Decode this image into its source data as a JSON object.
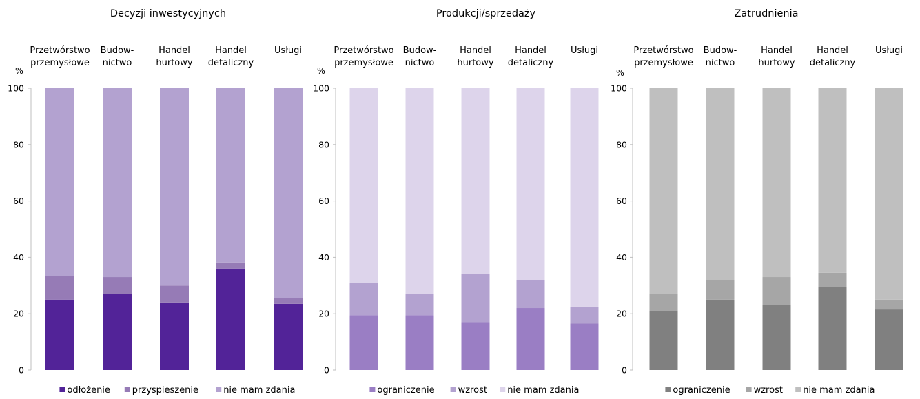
{
  "chart_data": [
    {
      "type": "bar",
      "stacked": true,
      "title": "Decyzji inwestycyjnych",
      "categories": [
        [
          "Przetwórstwo",
          "przemysłowe"
        ],
        [
          "Budow-",
          "nictwo"
        ],
        [
          "Handel",
          "hurtowy"
        ],
        [
          "Handel",
          "detaliczny"
        ],
        [
          "Usługi"
        ]
      ],
      "ylabel": "%",
      "ylim": [
        0,
        100
      ],
      "yticks": [
        "0",
        "20",
        "40",
        "60",
        "80",
        "100"
      ],
      "legend_position": "bottom",
      "series": [
        {
          "name": "odłożenie",
          "color": "#522398",
          "values": [
            25,
            27,
            24,
            36,
            23.5
          ]
        },
        {
          "name": "przyspieszenie",
          "color": "#967bb6",
          "values": [
            8.3,
            6,
            6,
            2.2,
            2
          ]
        },
        {
          "name": "nie mam zdania",
          "color": "#b3a2d0",
          "values": [
            66.7,
            67,
            70,
            61.8,
            74.5
          ]
        }
      ]
    },
    {
      "type": "bar",
      "stacked": true,
      "title": "Produkcji/sprzedaży",
      "categories": [
        [
          "Przetwórstwo",
          "przemysłowe"
        ],
        [
          "Budow-",
          "nictwo"
        ],
        [
          "Handel",
          "hurtowy"
        ],
        [
          "Handel",
          "detaliczny"
        ],
        [
          "Usługi"
        ]
      ],
      "ylabel": "%",
      "ylim": [
        0,
        100
      ],
      "yticks": [
        "0",
        "20",
        "40",
        "60",
        "80",
        "100"
      ],
      "legend_position": "bottom",
      "series": [
        {
          "name": "ograniczenie",
          "color": "#9a7ec4",
          "values": [
            19.5,
            19.5,
            17,
            22,
            16.5
          ]
        },
        {
          "name": "wzrost",
          "color": "#b3a2d0",
          "values": [
            11.5,
            7.5,
            17,
            10,
            6
          ]
        },
        {
          "name": "nie mam zdania",
          "color": "#ddd4eb",
          "values": [
            69,
            73,
            66,
            68,
            77.5
          ]
        }
      ]
    },
    {
      "type": "bar",
      "stacked": true,
      "title": "Zatrudnienia",
      "categories": [
        [
          "Przetwórstwo",
          "przemysłowe"
        ],
        [
          "Budow-",
          "nictwo"
        ],
        [
          "Handel",
          "hurtowy"
        ],
        [
          "Handel",
          "detaliczny"
        ],
        [
          "Usługi"
        ]
      ],
      "ylabel": "%",
      "ylim": [
        0,
        100
      ],
      "yticks": [
        "0",
        "20",
        "40",
        "60",
        "80",
        "100"
      ],
      "legend_position": "bottom",
      "series": [
        {
          "name": "ograniczenie",
          "color": "#808080",
          "values": [
            21,
            25,
            23,
            29.5,
            21.5
          ]
        },
        {
          "name": "wzrost",
          "color": "#a6a6a6",
          "values": [
            6,
            7,
            10,
            5,
            3.5
          ]
        },
        {
          "name": "nie mam zdania",
          "color": "#bfbfbf",
          "values": [
            73,
            68,
            67,
            65.5,
            75
          ]
        }
      ]
    }
  ]
}
